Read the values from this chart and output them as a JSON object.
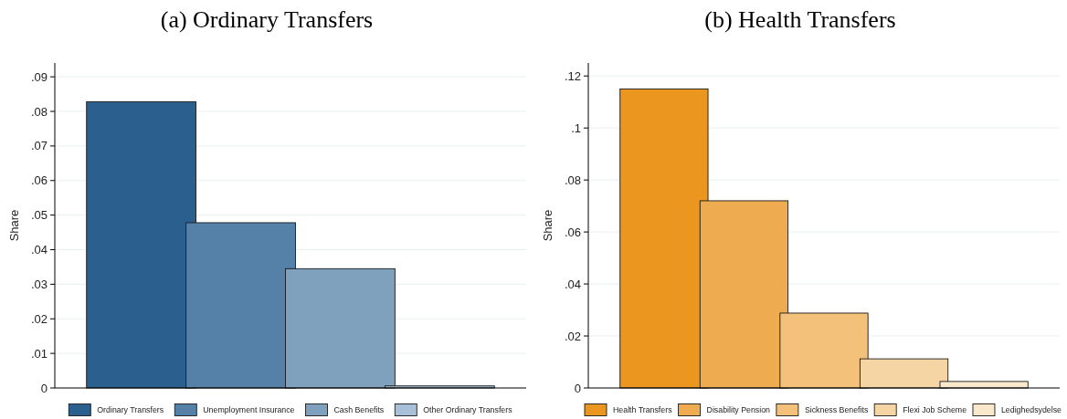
{
  "chart_data": [
    {
      "type": "bar",
      "title": "(a) Ordinary Transfers",
      "ylabel": "Share",
      "categories": [
        null
      ],
      "series": [
        {
          "name": "Ordinary Transfers",
          "color": "#2b5f8e",
          "values": [
            0.0828
          ]
        },
        {
          "name": "Unemployment Insurance",
          "color": "#5581a9",
          "values": [
            0.0478
          ]
        },
        {
          "name": "Cash Benefits",
          "color": "#7fa1be",
          "values": [
            0.0345
          ]
        },
        {
          "name": "Other Ordinary Transfers",
          "color": "#a9c1d8",
          "values": [
            0.0006
          ]
        }
      ],
      "ylim": [
        0,
        0.094
      ],
      "yticks": [
        0,
        {
          "value": 0.01,
          "label": ".01"
        },
        {
          "value": 0.02,
          "label": ".02"
        },
        {
          "value": 0.03,
          "label": ".03"
        },
        {
          "value": 0.04,
          "label": ".04"
        },
        {
          "value": 0.05,
          "label": ".05"
        },
        {
          "value": 0.06,
          "label": ".06"
        },
        {
          "value": 0.07,
          "label": ".07"
        },
        {
          "value": 0.08,
          "label": ".08"
        },
        {
          "value": 0.09,
          "label": ".09"
        }
      ],
      "grid": "y",
      "legend": "bottom"
    },
    {
      "type": "bar",
      "title": "(b) Health Transfers",
      "ylabel": "Share",
      "categories": [
        null
      ],
      "series": [
        {
          "name": "Health Transfers",
          "color": "#ea961f",
          "values": [
            0.115
          ]
        },
        {
          "name": "Disability Pension",
          "color": "#eeab50",
          "values": [
            0.072
          ]
        },
        {
          "name": "Sickness Benefits",
          "color": "#f3c17a",
          "values": [
            0.0288
          ]
        },
        {
          "name": "Flexi Job Scheme",
          "color": "#f6d5a5",
          "values": [
            0.0112
          ]
        },
        {
          "name": "Ledighedsydelse",
          "color": "#f9e8cc",
          "values": [
            0.0025
          ]
        }
      ],
      "ylim": [
        0,
        0.125
      ],
      "yticks": [
        0,
        {
          "value": 0.02,
          "label": ".02"
        },
        {
          "value": 0.04,
          "label": ".04"
        },
        {
          "value": 0.06,
          "label": ".06"
        },
        {
          "value": 0.08,
          "label": ".08"
        },
        {
          "value": 0.1,
          "label": ".1"
        },
        {
          "value": 0.12,
          "label": ".12"
        }
      ],
      "grid": "y",
      "legend": "bottom"
    }
  ]
}
